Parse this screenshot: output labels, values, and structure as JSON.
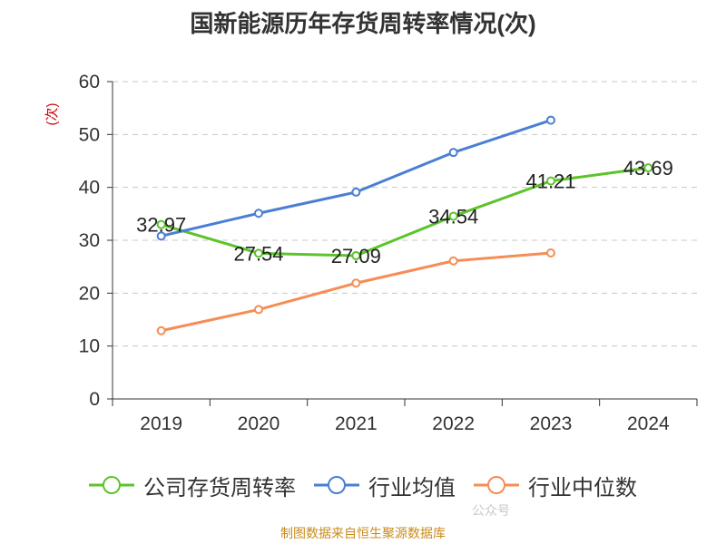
{
  "title": "国新能源历年存货周转率情况(次)",
  "source": "制图数据来自恒生聚源数据库",
  "watermark": "公众号",
  "chart_data": {
    "type": "line",
    "title": "国新能源历年存货周转率情况(次)",
    "ylabel": "(次)",
    "xlabel": "",
    "categories": [
      "2019",
      "2020",
      "2021",
      "2022",
      "2023",
      "2024"
    ],
    "ylim": [
      0,
      60
    ],
    "yticks": [
      0,
      10,
      20,
      30,
      40,
      50,
      60
    ],
    "grid": true,
    "legend_position": "bottom",
    "series": [
      {
        "name": "公司存货周转率",
        "color": "#5bc42a",
        "values": [
          32.97,
          27.54,
          27.09,
          34.54,
          41.21,
          43.69
        ],
        "labels": [
          "32.97",
          "27.54",
          "27.09",
          "34.54",
          "41.21",
          "43.69"
        ]
      },
      {
        "name": "行业均值",
        "color": "#4a7fd4",
        "values": [
          30.8,
          35.1,
          39.1,
          46.6,
          52.7,
          null
        ]
      },
      {
        "name": "行业中位数",
        "color": "#f58d55",
        "values": [
          12.9,
          16.9,
          21.9,
          26.1,
          27.6,
          null
        ]
      }
    ]
  }
}
